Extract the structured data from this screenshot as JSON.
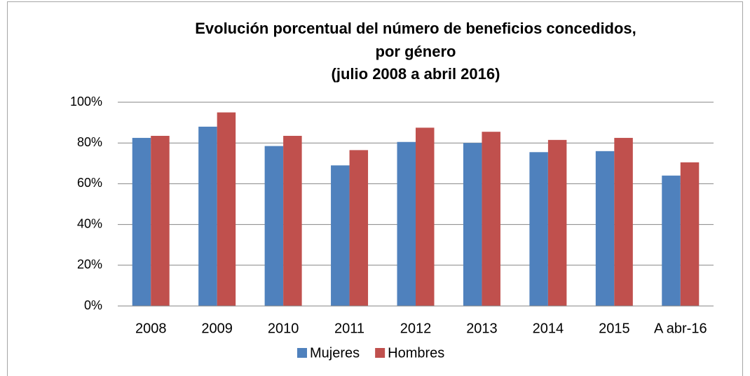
{
  "chart_data": {
    "type": "bar",
    "title": [
      "Evolución porcentual del número de beneficios concedidos,",
      "por género",
      "(julio 2008 a abril 2016)"
    ],
    "categories": [
      "2008",
      "2009",
      "2010",
      "2011",
      "2012",
      "2013",
      "2014",
      "2015",
      "A abr-16"
    ],
    "series": [
      {
        "name": "Mujeres",
        "color": "#4f81bd",
        "values": [
          82.5,
          88,
          78.5,
          69,
          80.5,
          80,
          75.5,
          76,
          64
        ]
      },
      {
        "name": "Hombres",
        "color": "#c0504d",
        "values": [
          83.5,
          95,
          83.5,
          76.5,
          87.5,
          85.5,
          81.5,
          82.5,
          70.5
        ]
      }
    ],
    "ylim": [
      0,
      100
    ],
    "yticks": [
      {
        "value": 0,
        "label": "0%"
      },
      {
        "value": 20,
        "label": "20%"
      },
      {
        "value": 40,
        "label": "40%"
      },
      {
        "value": 60,
        "label": "60%"
      },
      {
        "value": 80,
        "label": "80%"
      },
      {
        "value": 100,
        "label": "100%"
      }
    ],
    "grid": true,
    "legend": "bottom"
  }
}
